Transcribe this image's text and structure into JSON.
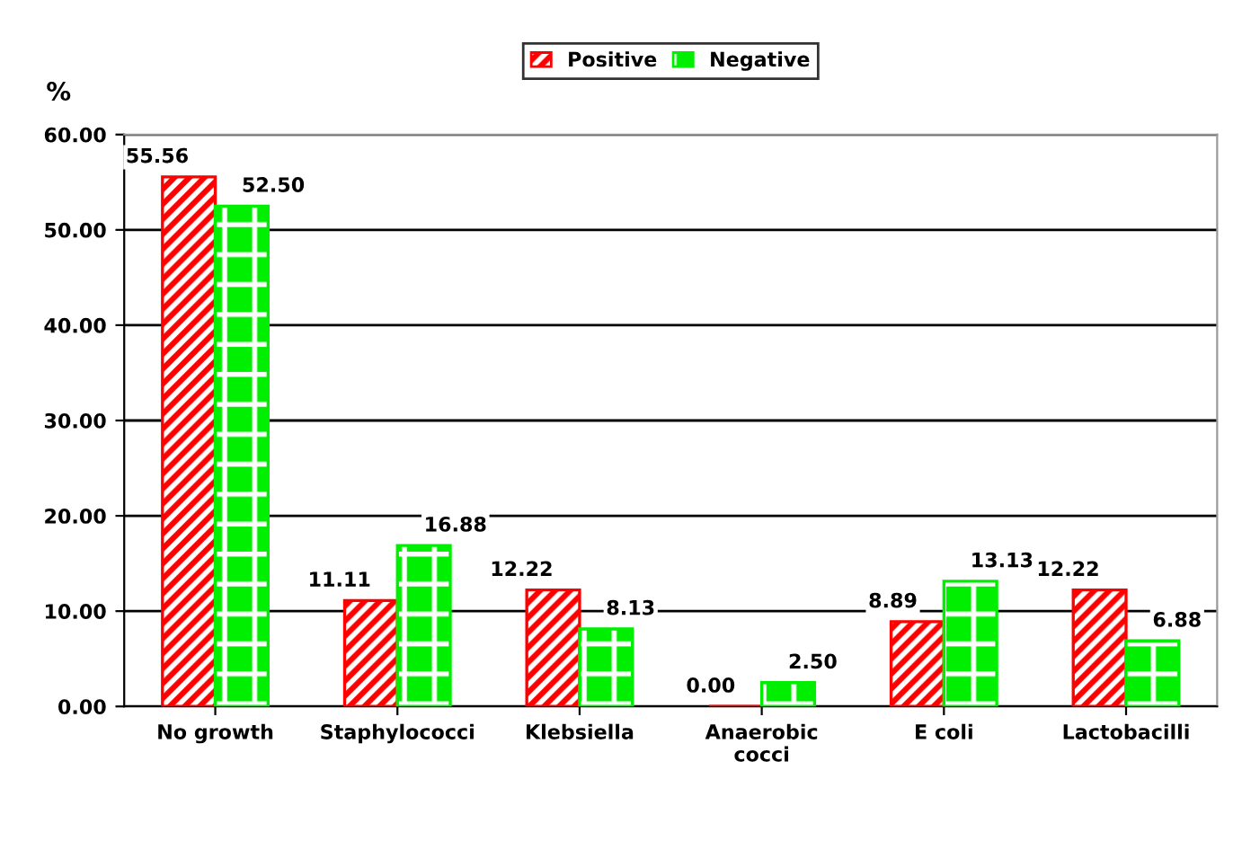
{
  "chart_data": {
    "type": "bar",
    "ylabel": "%",
    "categories": [
      "No growth",
      "Staphylococci",
      "Klebsiella",
      "Anaerobic\ncocci",
      "E coli",
      "Lactobacilli"
    ],
    "series": [
      {
        "name": "Positive",
        "color": "#ff0000",
        "values": [
          55.56,
          11.11,
          12.22,
          0.0,
          8.89,
          12.22
        ],
        "value_labels": [
          "55.56",
          "11.11",
          "12.22",
          "0.00",
          "8.89",
          "12.22"
        ]
      },
      {
        "name": "Negative",
        "color": "#00ee00",
        "values": [
          52.5,
          16.88,
          8.13,
          2.5,
          13.13,
          6.88
        ],
        "value_labels": [
          "52.50",
          "16.88",
          "8.13",
          "2.50",
          "13.13",
          "6.88"
        ]
      }
    ],
    "ylim": [
      0,
      60
    ],
    "yticks": [
      {
        "value": 0,
        "label": "0.00"
      },
      {
        "value": 10,
        "label": "10.00"
      },
      {
        "value": 20,
        "label": "20.00"
      },
      {
        "value": 30,
        "label": "30.00"
      },
      {
        "value": 40,
        "label": "40.00"
      },
      {
        "value": 50,
        "label": "50.00"
      },
      {
        "value": 60,
        "label": "60.00"
      }
    ],
    "grid": "y",
    "legend": "top"
  }
}
